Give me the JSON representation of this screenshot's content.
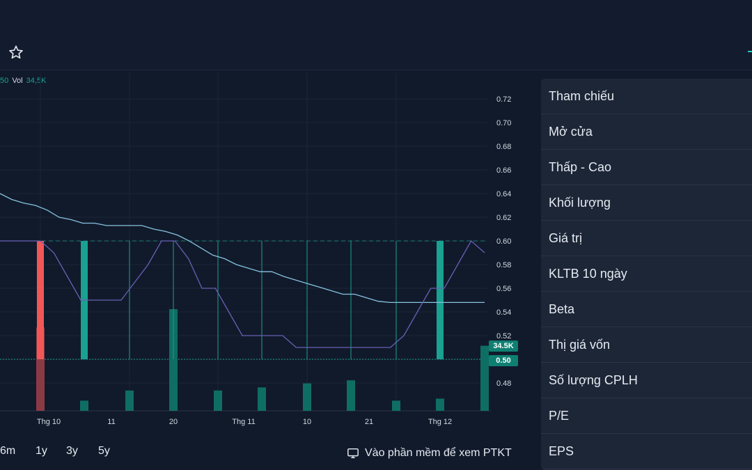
{
  "legend": {
    "prefix_value": "50",
    "vol_label": "Vol",
    "vol_value": "34,5K"
  },
  "chart_data": {
    "type": "bar+line",
    "y_ticks": [
      "0.72",
      "0.70",
      "0.68",
      "0.66",
      "0.64",
      "0.62",
      "0.60",
      "0.58",
      "0.56",
      "0.54",
      "0.52",
      "0.50",
      "0.48"
    ],
    "y_min": 0.46,
    "y_max": 0.74,
    "x_labels": [
      "Thg 10",
      "11",
      "20",
      "Thg 11",
      "10",
      "21",
      "Thg 12"
    ],
    "price_tags": {
      "volume": "34.5K",
      "price": "0.50"
    },
    "ma_line": [
      0.64,
      0.635,
      0.632,
      0.63,
      0.626,
      0.62,
      0.618,
      0.615,
      0.615,
      0.613,
      0.613,
      0.613,
      0.613,
      0.61,
      0.608,
      0.605,
      0.6,
      0.594,
      0.588,
      0.585,
      0.58,
      0.577,
      0.574,
      0.574,
      0.57,
      0.567,
      0.564,
      0.561,
      0.558,
      0.555,
      0.555,
      0.552,
      0.549,
      0.548,
      0.548,
      0.548,
      0.548,
      0.548,
      0.548,
      0.548,
      0.548,
      0.548
    ],
    "price_line": [
      0.6,
      0.6,
      0.6,
      0.6,
      0.59,
      0.57,
      0.55,
      0.55,
      0.55,
      0.55,
      0.565,
      0.58,
      0.6,
      0.6,
      0.585,
      0.56,
      0.56,
      0.54,
      0.52,
      0.52,
      0.52,
      0.52,
      0.51,
      0.51,
      0.51,
      0.51,
      0.51,
      0.51,
      0.51,
      0.51,
      0.52,
      0.54,
      0.56,
      0.56,
      0.58,
      0.6,
      0.59
    ],
    "candles": [
      {
        "x": 58,
        "open": 0.6,
        "close": 0.5,
        "color": "#f25757"
      },
      {
        "x": 121,
        "open": 0.6,
        "close": 0.5,
        "color": "#1aa191"
      },
      {
        "x": 632,
        "open": 0.6,
        "close": 0.5,
        "color": "#1aa191"
      }
    ],
    "dojis": [
      186,
      249,
      313,
      376,
      441,
      504,
      569
    ],
    "volume_bars": [
      {
        "x": 58,
        "v": 0.82,
        "color": "#8b3a45"
      },
      {
        "x": 121,
        "v": 0.1,
        "color": "#0f6e63"
      },
      {
        "x": 186,
        "v": 0.2,
        "color": "#0f6e63"
      },
      {
        "x": 249,
        "v": 1.0,
        "color": "#0f6e63"
      },
      {
        "x": 313,
        "v": 0.2,
        "color": "#0f6e63"
      },
      {
        "x": 376,
        "v": 0.23,
        "color": "#0f6e63"
      },
      {
        "x": 441,
        "v": 0.27,
        "color": "#0f6e63"
      },
      {
        "x": 504,
        "v": 0.3,
        "color": "#0f6e63"
      },
      {
        "x": 569,
        "v": 0.1,
        "color": "#0f6e63"
      },
      {
        "x": 632,
        "v": 0.12,
        "color": "#0f6e63"
      },
      {
        "x": 696,
        "v": 0.64,
        "color": "#0f6e63"
      }
    ]
  },
  "ranges": [
    "6m",
    "1y",
    "3y",
    "5y"
  ],
  "ptkt_label": "Vào phần mềm để xem PTKT",
  "panel_rows": [
    "Tham chiếu",
    "Mở cửa",
    "Thấp - Cao",
    "Khối lượng",
    "Giá trị",
    "KLTB 10 ngày",
    "Beta",
    "Thị giá vốn",
    "Số lượng CPLH",
    "P/E",
    "EPS"
  ],
  "colors": {
    "up": "#1aa191",
    "down": "#f25757",
    "ma": "#86c3e0",
    "price": "#6a5fb5"
  }
}
